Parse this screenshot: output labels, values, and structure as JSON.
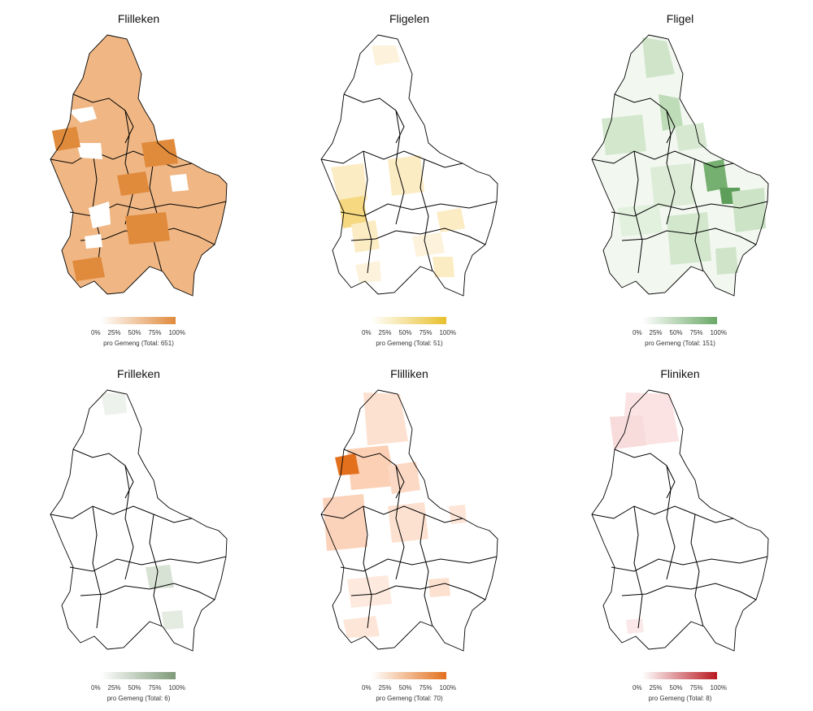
{
  "legend_ticks": [
    "0%",
    "25%",
    "50%",
    "75%",
    "100%"
  ],
  "panels": [
    {
      "title": "Flilleken",
      "caption": "pro Gemeng (Total: 651)",
      "color": "#e08a3c",
      "light": "#f6d6b5",
      "fill_level": 0.55
    },
    {
      "title": "Fligelen",
      "caption": "pro Gemeng (Total: 51)",
      "color": "#e8c02c",
      "light": "#fbecc3",
      "fill_level": 0.1
    },
    {
      "title": "Fligel",
      "caption": "pro Gemeng (Total: 151)",
      "color": "#6aa866",
      "light": "#d6e9d0",
      "fill_level": 0.2
    },
    {
      "title": "Frilleken",
      "caption": "pro Gemeng (Total: 6)",
      "color": "#7e9a78",
      "light": "#e4ebe1",
      "fill_level": 0.03
    },
    {
      "title": "Flilliken",
      "caption": "pro Gemeng (Total: 70)",
      "color": "#e2701c",
      "light": "#fbdac6",
      "fill_level": 0.15
    },
    {
      "title": "Fliniken",
      "caption": "pro Gemeng (Total: 8)",
      "color": "#b81820",
      "light": "#f8dcdc",
      "fill_level": 0.04
    }
  ]
}
